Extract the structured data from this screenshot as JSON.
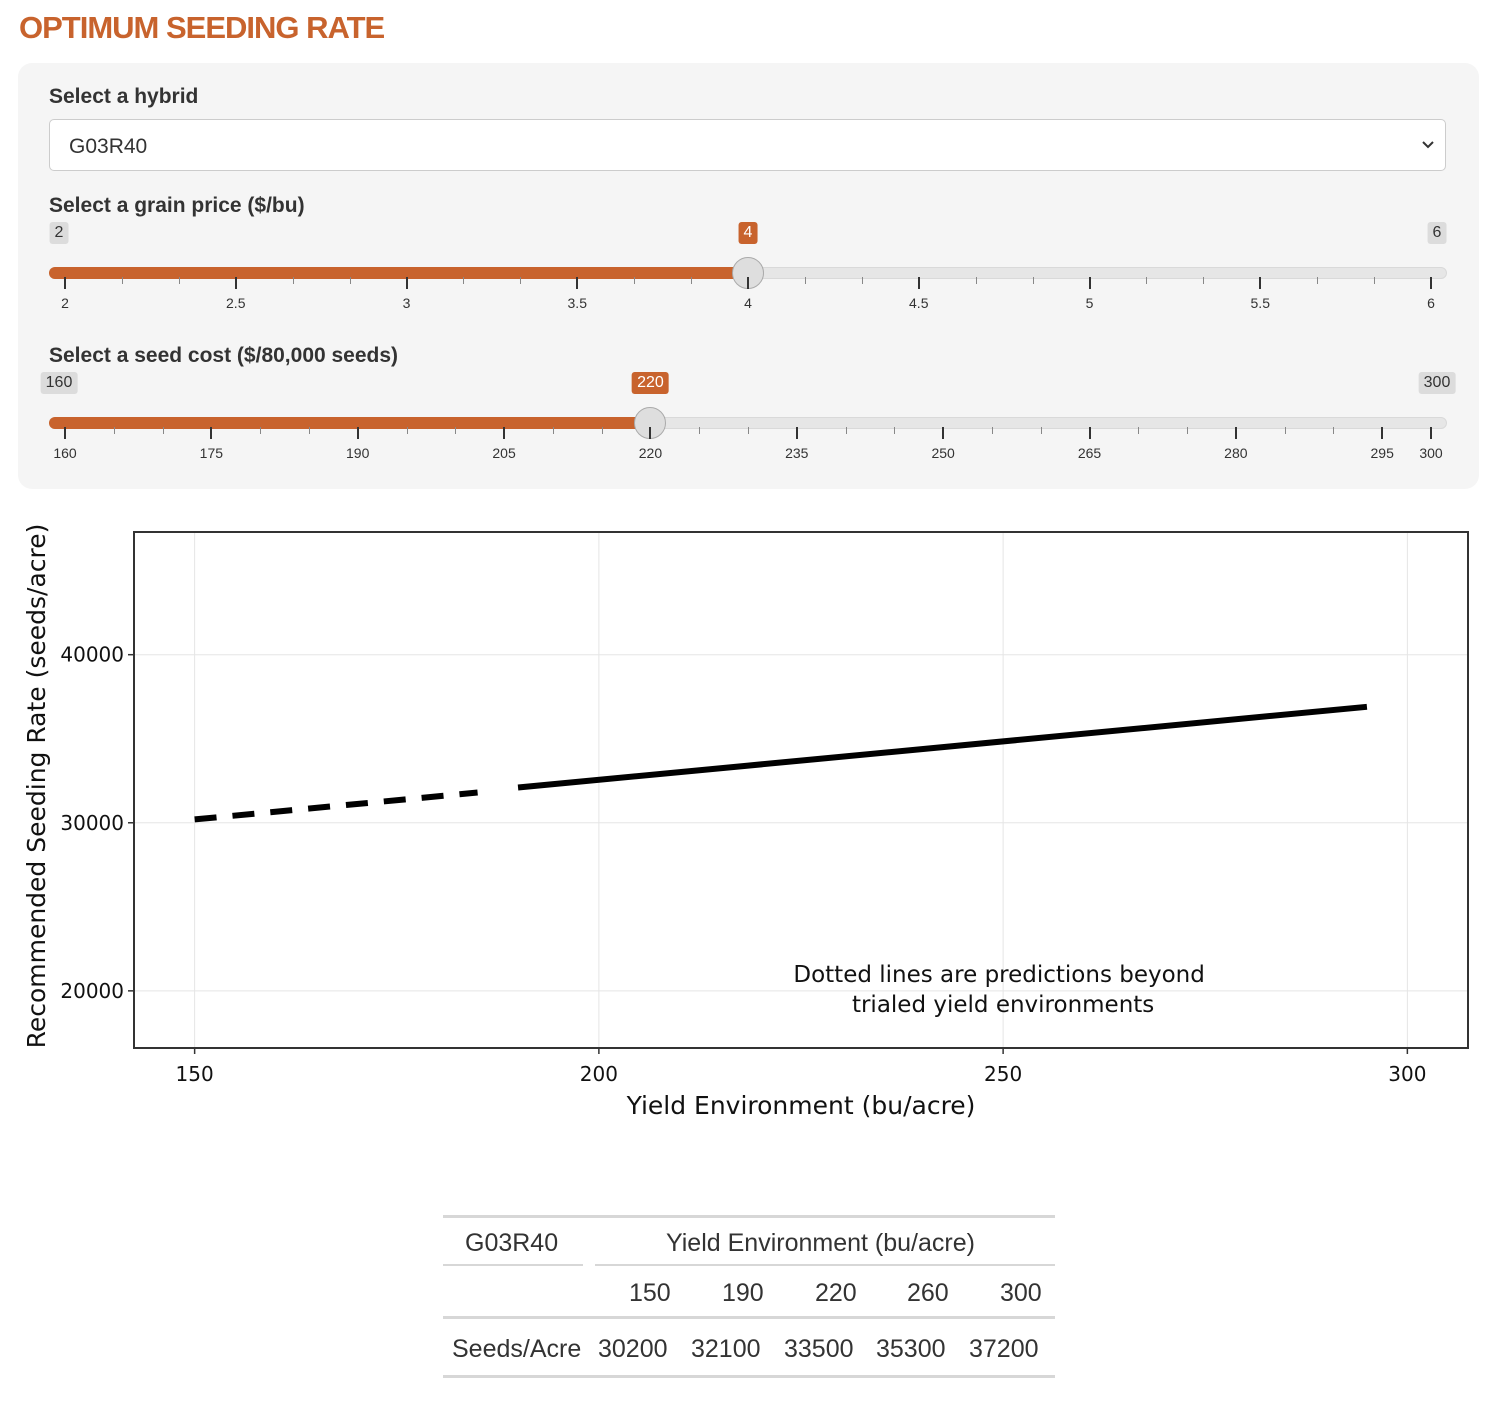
{
  "app": {
    "title": "OPTIMUM SEEDING RATE"
  },
  "controls": {
    "hybrid": {
      "label": "Select a hybrid",
      "selected": "G03R40",
      "chevron_icon": "chevron-down-icon"
    },
    "grain_price": {
      "label": "Select a grain price ($/bu)",
      "min": 2,
      "max": 6,
      "value": 4,
      "min_label": "2",
      "max_label": "6",
      "value_label": "4",
      "major_ticks": [
        2,
        2.5,
        3,
        3.5,
        4,
        4.5,
        5,
        5.5,
        6
      ],
      "tick_labels": [
        "2",
        "2.5",
        "3",
        "3.5",
        "4",
        "4.5",
        "5",
        "5.5",
        "6"
      ],
      "accent_color": "#c8632d"
    },
    "seed_cost": {
      "label": "Select a seed cost ($/80,000 seeds)",
      "min": 160,
      "max": 300,
      "value": 220,
      "min_label": "160",
      "max_label": "300",
      "value_label": "220",
      "major_ticks": [
        160,
        175,
        190,
        205,
        220,
        235,
        250,
        265,
        280,
        295,
        300
      ],
      "tick_labels": [
        "160",
        "175",
        "190",
        "205",
        "220",
        "235",
        "250",
        "265",
        "280",
        "295",
        "300"
      ],
      "accent_color": "#c8632d"
    }
  },
  "chart_data": {
    "type": "line",
    "title": "",
    "xlabel": "Yield Environment (bu/acre)",
    "ylabel": "Recommended Seeding Rate (seeds/acre)",
    "xlim": [
      142.5,
      307.5
    ],
    "ylim": [
      16600,
      47300
    ],
    "x_ticks": [
      150,
      200,
      250,
      300
    ],
    "x_tick_labels": [
      "150",
      "200",
      "250",
      "300"
    ],
    "y_ticks": [
      20000,
      30000,
      40000
    ],
    "y_tick_labels": [
      "20000",
      "30000",
      "40000"
    ],
    "grid": true,
    "legend": "none",
    "series": [
      {
        "style": "dashed",
        "x": [
          150,
          185
        ],
        "y": [
          30200,
          31800
        ]
      },
      {
        "style": "solid",
        "x": [
          190,
          295
        ],
        "y": [
          32100,
          36900
        ]
      }
    ],
    "annotation": {
      "text_lines": [
        "Dotted lines are predictions beyond",
        "trialed yield environments"
      ],
      "x": 250,
      "y": 20000
    }
  },
  "summary_table": {
    "hybrid": "G03R40",
    "group_header": "Yield Environment (bu/acre)",
    "yield_levels": [
      "150",
      "190",
      "220",
      "260",
      "300"
    ],
    "row_label": "Seeds/Acre",
    "seeds_per_acre": [
      "30200",
      "32100",
      "33500",
      "35300",
      "37200"
    ]
  }
}
